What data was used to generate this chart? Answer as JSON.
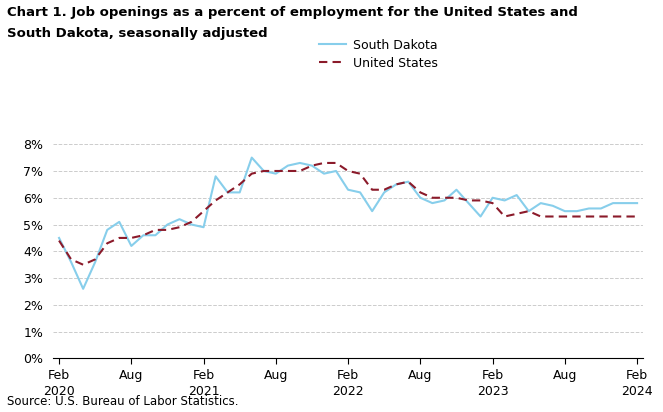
{
  "title_line1": "Chart 1. Job openings as a percent of employment for the United States and",
  "title_line2": "South Dakota, seasonally adjusted",
  "source": "Source: U.S. Bureau of Labor Statistics.",
  "sd_label": "South Dakota",
  "us_label": "United States",
  "sd_color": "#87CEEB",
  "us_color": "#8B1A2A",
  "ylim": [
    0,
    8
  ],
  "yticks": [
    0,
    1,
    2,
    3,
    4,
    5,
    6,
    7,
    8
  ],
  "ytick_labels": [
    "0%",
    "1%",
    "2%",
    "3%",
    "4%",
    "5%",
    "6%",
    "7%",
    "8%"
  ],
  "xtick_labels": [
    "Feb\n2020",
    "Aug",
    "Feb\n2021",
    "Aug",
    "Feb\n2022",
    "Aug",
    "Feb\n2023",
    "Aug",
    "Feb\n2024"
  ],
  "xtick_positions": [
    0,
    6,
    12,
    18,
    24,
    30,
    36,
    42,
    48
  ],
  "south_dakota": [
    4.5,
    3.6,
    2.6,
    3.6,
    4.8,
    5.1,
    4.2,
    4.6,
    4.6,
    5.0,
    5.2,
    5.0,
    4.9,
    6.8,
    6.2,
    6.2,
    7.5,
    7.0,
    6.9,
    7.2,
    7.3,
    7.2,
    6.9,
    7.0,
    6.3,
    6.2,
    5.5,
    6.2,
    6.5,
    6.6,
    6.0,
    5.8,
    5.9,
    6.3,
    5.8,
    5.3,
    6.0,
    5.9,
    6.1,
    5.5,
    5.8,
    5.7,
    5.5,
    5.5,
    5.6,
    5.6,
    5.8,
    5.8,
    5.8
  ],
  "united_states": [
    4.4,
    3.7,
    3.5,
    3.7,
    4.3,
    4.5,
    4.5,
    4.6,
    4.8,
    4.8,
    4.9,
    5.1,
    5.5,
    5.9,
    6.2,
    6.5,
    6.9,
    7.0,
    7.0,
    7.0,
    7.0,
    7.2,
    7.3,
    7.3,
    7.0,
    6.9,
    6.3,
    6.3,
    6.5,
    6.6,
    6.2,
    6.0,
    6.0,
    6.0,
    5.9,
    5.9,
    5.8,
    5.3,
    5.4,
    5.5,
    5.3,
    5.3,
    5.3,
    5.3,
    5.3,
    5.3,
    5.3,
    5.3,
    5.3
  ]
}
